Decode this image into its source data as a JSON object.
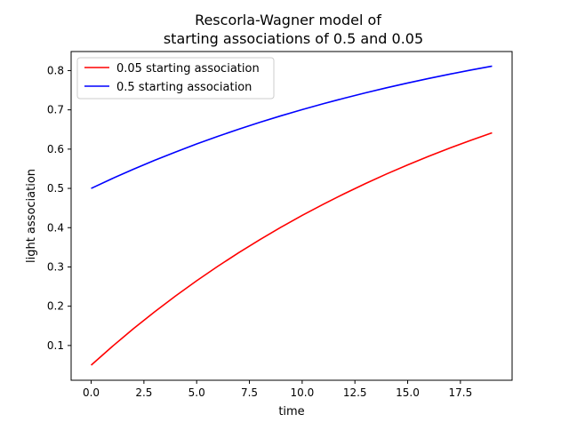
{
  "chart_data": {
    "type": "line",
    "title_line1": "Rescorla-Wagner model of",
    "title_line2": "starting associations of 0.5 and 0.05",
    "xlabel": "time",
    "ylabel": "light association",
    "xlim": [
      -0.95,
      19.95
    ],
    "ylim": [
      0.0115,
      0.8485
    ],
    "xticks": [
      0.0,
      2.5,
      5.0,
      7.5,
      10.0,
      12.5,
      15.0,
      17.5
    ],
    "xtick_labels": [
      "0.0",
      "2.5",
      "5.0",
      "7.5",
      "10.0",
      "12.5",
      "15.0",
      "17.5"
    ],
    "yticks": [
      0.1,
      0.2,
      0.3,
      0.4,
      0.5,
      0.6,
      0.7,
      0.8
    ],
    "ytick_labels": [
      "0.1",
      "0.2",
      "0.3",
      "0.4",
      "0.5",
      "0.6",
      "0.7",
      "0.8"
    ],
    "grid": false,
    "legend_position": "upper-left",
    "x": [
      0,
      1,
      2,
      3,
      4,
      5,
      6,
      7,
      8,
      9,
      10,
      11,
      12,
      13,
      14,
      15,
      16,
      17,
      18,
      19
    ],
    "series": [
      {
        "name": "0.05 starting association",
        "color": "#ff0000",
        "values": [
          0.05,
          0.0975,
          0.1426,
          0.1854,
          0.2262,
          0.2649,
          0.3016,
          0.3365,
          0.3697,
          0.4012,
          0.4312,
          0.4596,
          0.4866,
          0.5123,
          0.5367,
          0.5599,
          0.5819,
          0.6028,
          0.6226,
          0.6415
        ]
      },
      {
        "name": "0.5 starting association",
        "color": "#0000ff",
        "values": [
          0.5,
          0.525,
          0.5488,
          0.5713,
          0.5927,
          0.6131,
          0.6325,
          0.6508,
          0.6683,
          0.6849,
          0.7006,
          0.7156,
          0.7298,
          0.7433,
          0.7562,
          0.7684,
          0.7799,
          0.7909,
          0.8014,
          0.8113
        ]
      }
    ]
  }
}
